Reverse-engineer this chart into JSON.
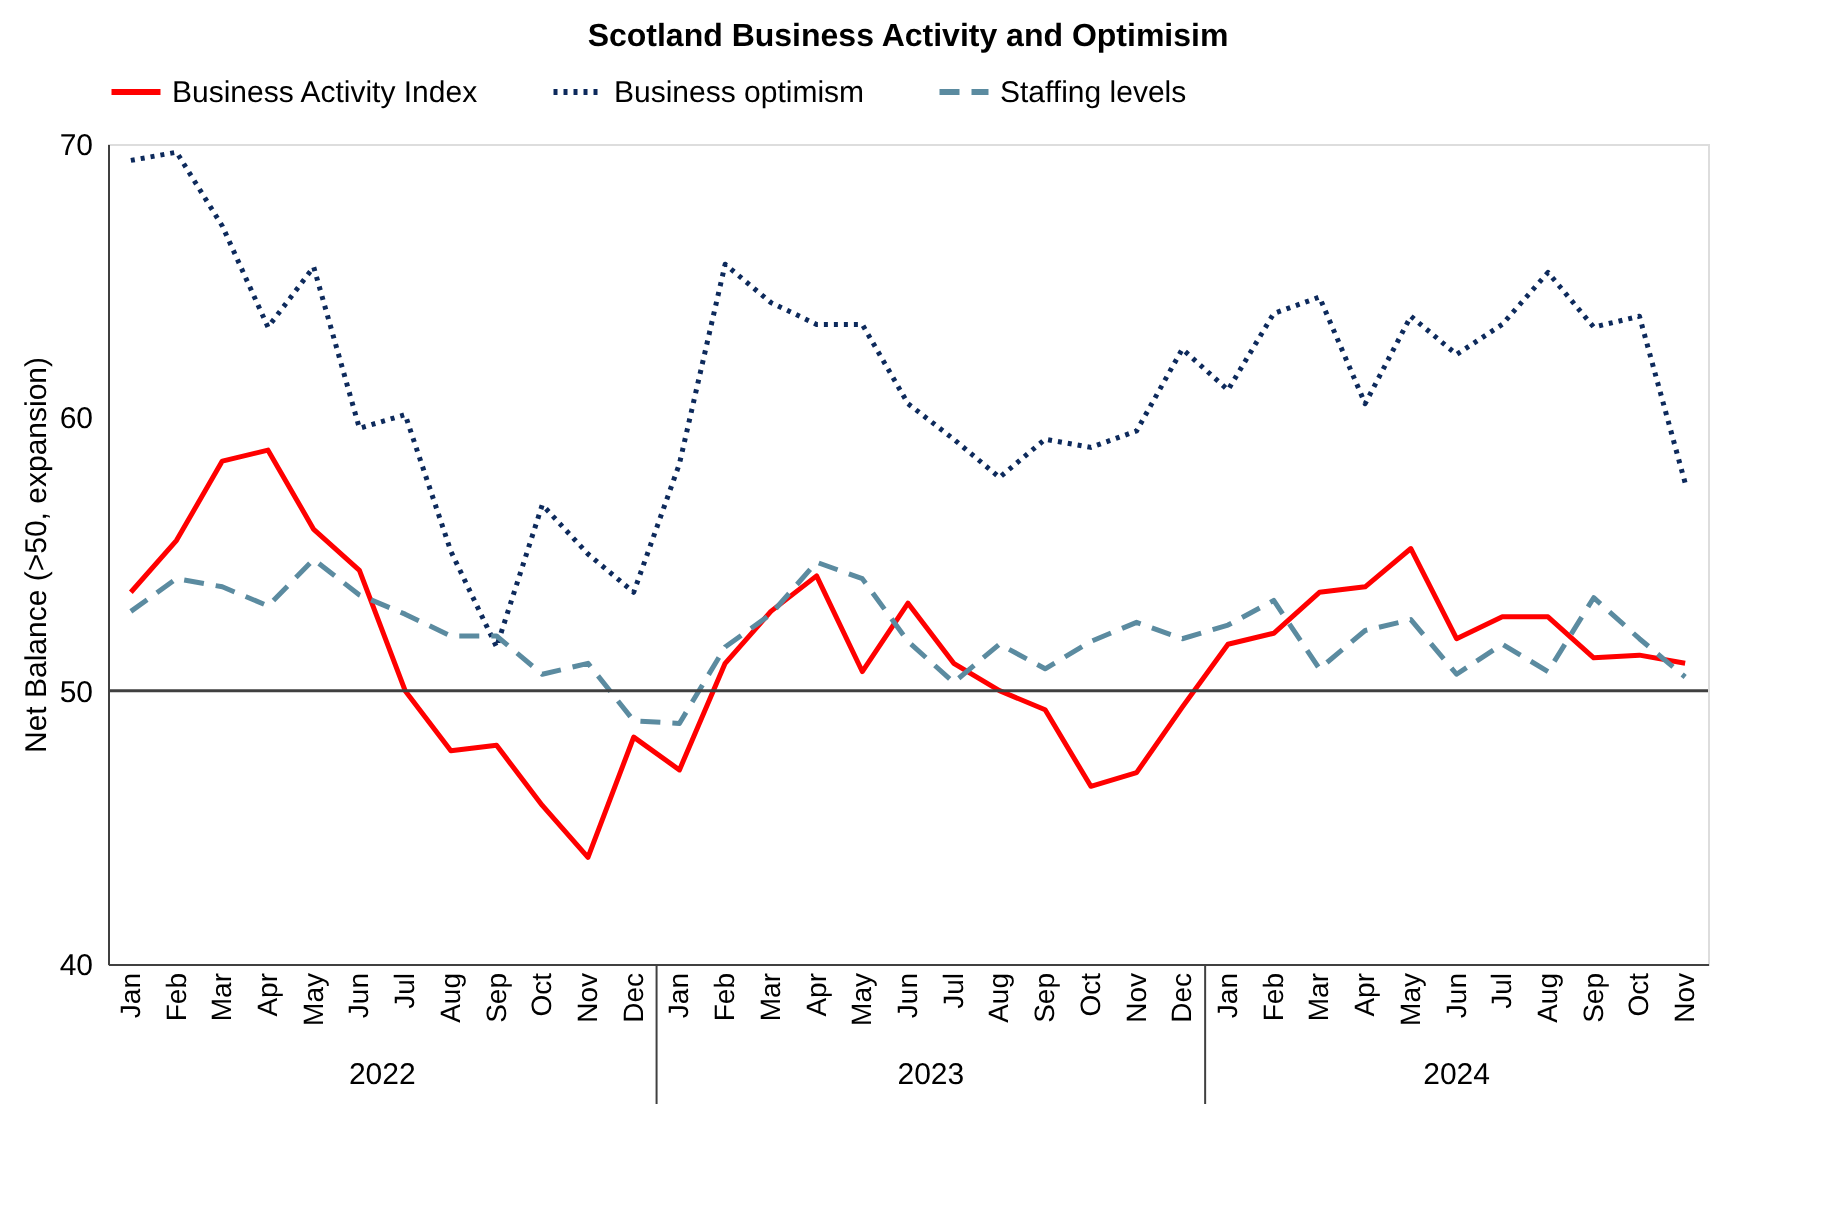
{
  "chart_data": {
    "type": "line",
    "title": "Scotland Business Activity and Optimisim",
    "ylabel": "Net Balance (>50, expansion)",
    "categories": [
      "Jan",
      "Feb",
      "Mar",
      "Apr",
      "May",
      "Jun",
      "Jul",
      "Aug",
      "Sep",
      "Oct",
      "Nov",
      "Dec",
      "Jan",
      "Feb",
      "Mar",
      "Apr",
      "May",
      "Jun",
      "Jul",
      "Aug",
      "Sep",
      "Oct",
      "Nov",
      "Dec",
      "Jan",
      "Feb",
      "Mar",
      "Apr",
      "May",
      "Jun",
      "Jul",
      "Aug",
      "Sep",
      "Oct",
      "Nov"
    ],
    "series": [
      {
        "name": "Business Activity Index",
        "color": "#ff0000",
        "line_style": "solid",
        "values": [
          53.6,
          55.5,
          58.4,
          58.8,
          55.9,
          54.4,
          50.0,
          47.8,
          48.0,
          45.8,
          43.9,
          48.3,
          47.1,
          51.0,
          52.9,
          54.2,
          50.7,
          53.2,
          51.0,
          50.0,
          49.3,
          46.5,
          47.0,
          49.4,
          51.7,
          52.1,
          53.6,
          53.8,
          55.2,
          51.9,
          52.7,
          52.7,
          51.2,
          51.3,
          51.0
        ]
      },
      {
        "name": "Business optimism",
        "color": "#0d2a5c",
        "line_style": "dotted",
        "values": [
          69.4,
          69.7,
          67.0,
          63.3,
          65.5,
          59.6,
          60.1,
          55.1,
          51.6,
          56.8,
          55.0,
          53.6,
          58.3,
          65.6,
          64.2,
          63.4,
          63.4,
          60.5,
          59.2,
          57.8,
          59.2,
          58.9,
          59.5,
          62.5,
          61.0,
          63.8,
          64.4,
          60.5,
          63.7,
          62.3,
          63.4,
          65.3,
          63.3,
          63.7,
          57.6
        ]
      },
      {
        "name": "Staffing levels",
        "color": "#5b8ba0",
        "line_style": "dashed",
        "values": [
          52.9,
          54.1,
          53.8,
          53.1,
          54.8,
          53.5,
          52.8,
          52.0,
          52.0,
          50.6,
          51.0,
          48.9,
          48.8,
          51.6,
          52.8,
          54.7,
          54.1,
          51.8,
          50.3,
          51.7,
          50.8,
          51.8,
          52.5,
          51.9,
          52.4,
          53.3,
          50.8,
          52.2,
          52.6,
          50.6,
          51.7,
          50.7,
          53.4,
          51.9,
          50.5
        ]
      }
    ],
    "ylim": [
      40,
      70
    ],
    "yticks": [
      40,
      50,
      60,
      70
    ],
    "grid": false,
    "legend": "top",
    "marker": "none",
    "ref_lines": [
      {
        "axis": "y",
        "value": 50,
        "color": "#404040"
      }
    ],
    "annotations": [
      "2022",
      "2023",
      "2024"
    ]
  }
}
